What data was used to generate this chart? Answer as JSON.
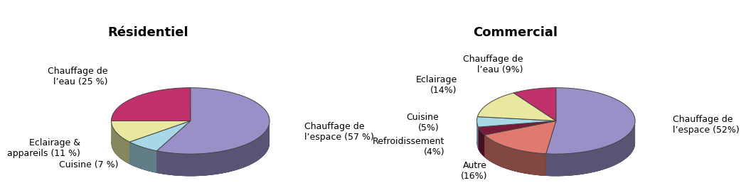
{
  "residential": {
    "title": "Résidentiel",
    "slices": [
      {
        "label": "Chauffage de\nl’espace (57 %)",
        "value": 57,
        "color": "#9B8FC8"
      },
      {
        "label": "Cuisine (7 %)",
        "value": 7,
        "color": "#A8D8E8"
      },
      {
        "label": "Eclairage &\nappareils (11 %)",
        "value": 11,
        "color": "#E8E8A0"
      },
      {
        "label": "Chauffage de\nl’eau (25 %)",
        "value": 25,
        "color": "#C0306A"
      }
    ]
  },
  "commercial": {
    "title": "Commercial",
    "slices": [
      {
        "label": "Chauffage de\nl’espace (52%)",
        "value": 52,
        "color": "#9B8FC8"
      },
      {
        "label": "Autre\n(16%)",
        "value": 16,
        "color": "#E07A70"
      },
      {
        "label": "Refroidissement\n(4%)",
        "value": 4,
        "color": "#7A1A3A"
      },
      {
        "label": "Cuisine\n(5%)",
        "value": 5,
        "color": "#A8D8E8"
      },
      {
        "label": "Eclairage\n(14%)",
        "value": 14,
        "color": "#E8E8A0"
      },
      {
        "label": "Chauffage de\nl’eau (9%)",
        "value": 9,
        "color": "#C0306A"
      }
    ]
  },
  "yscale": 0.42,
  "depth": 0.28,
  "rim_color": "#3A2A5A",
  "side_color": "#4A3A6A",
  "title_fontsize": 13,
  "label_fontsize": 9
}
